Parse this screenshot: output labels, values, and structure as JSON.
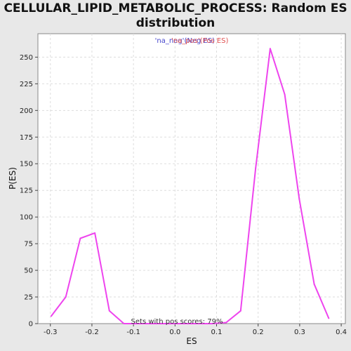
{
  "chart_data": {
    "type": "line",
    "title_line_1": "CELLULAR_LIPID_METABOLIC_PROCESS: Random ES",
    "title_line_2": "distribution",
    "xlabel": "ES",
    "ylabel": "P(ES)",
    "xlim": [
      -0.33,
      0.41
    ],
    "ylim": [
      0,
      272
    ],
    "x_ticks": [
      "-0.3",
      "-0.2",
      "-0.1",
      "0.0",
      "0.1",
      "0.2",
      "0.3",
      "0.4"
    ],
    "x_tick_values": [
      -0.3,
      -0.2,
      -0.1,
      0.0,
      0.1,
      0.2,
      0.3,
      0.4
    ],
    "y_ticks": [
      "0",
      "25",
      "50",
      "75",
      "100",
      "125",
      "150",
      "175",
      "200",
      "225",
      "250"
    ],
    "y_tick_values": [
      0,
      25,
      50,
      75,
      100,
      125,
      150,
      175,
      200,
      225,
      250
    ],
    "grid": true,
    "legend": {
      "placement": "top-center",
      "items": [
        {
          "label": "'na_neg'",
          "color": "#4444cc"
        },
        {
          "label": "(Neg ES)",
          "color": "#4444cc"
        },
        {
          "label": "'na_pos'",
          "color": "#e05050"
        },
        {
          "label": "(Pos ES)",
          "color": "#e05050"
        }
      ]
    },
    "annotation": "Sets with pos scores: 79%",
    "series": [
      {
        "color": "#ee44ee",
        "x": [
          -0.298,
          -0.263,
          -0.228,
          -0.193,
          -0.158,
          -0.123,
          -0.088,
          -0.053,
          -0.018,
          0.018,
          0.053,
          0.088,
          0.123,
          0.158,
          0.194,
          0.229,
          0.264,
          0.299,
          0.335,
          0.37
        ],
        "y": [
          7,
          25,
          80,
          85,
          12,
          0,
          0,
          0,
          0,
          0,
          0,
          0,
          1,
          12,
          146,
          258,
          215,
          117,
          37,
          5
        ]
      }
    ]
  }
}
